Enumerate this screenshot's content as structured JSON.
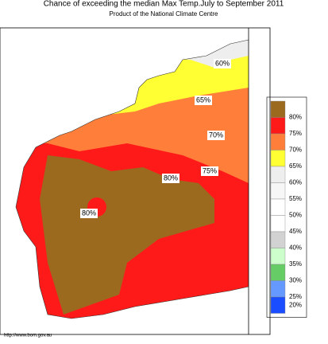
{
  "header": {
    "title": "Chance of exceeding the median Max Temp.July to September 2011",
    "subtitle": "Product of the National Climate Centre"
  },
  "contour_labels": [
    "60%",
    "65%",
    "70%",
    "75%",
    "80%",
    "80%"
  ],
  "legend": [
    {
      "label": "80%",
      "color": "#9c6a1e"
    },
    {
      "label": "75%",
      "color": "#ff1a1a"
    },
    {
      "label": "70%",
      "color": "#ff7f3a"
    },
    {
      "label": "65%",
      "color": "#ffff33"
    },
    {
      "label": "60%",
      "color": "#eeeeee"
    },
    {
      "label": "55%",
      "color": "#f6f6f6"
    },
    {
      "label": "50%",
      "color": "#ffffff"
    },
    {
      "label": "45%",
      "color": "#ffffff"
    },
    {
      "label": "40%",
      "color": "#d2d2d2"
    },
    {
      "label": "35%",
      "color": "#ccffcc"
    },
    {
      "label": "30%",
      "color": "#66cc66"
    },
    {
      "label": "25%",
      "color": "#6699ff"
    },
    {
      "label": "20%",
      "color": "#1a4dff"
    }
  ],
  "footer": "http://www.bom.gov.au"
}
